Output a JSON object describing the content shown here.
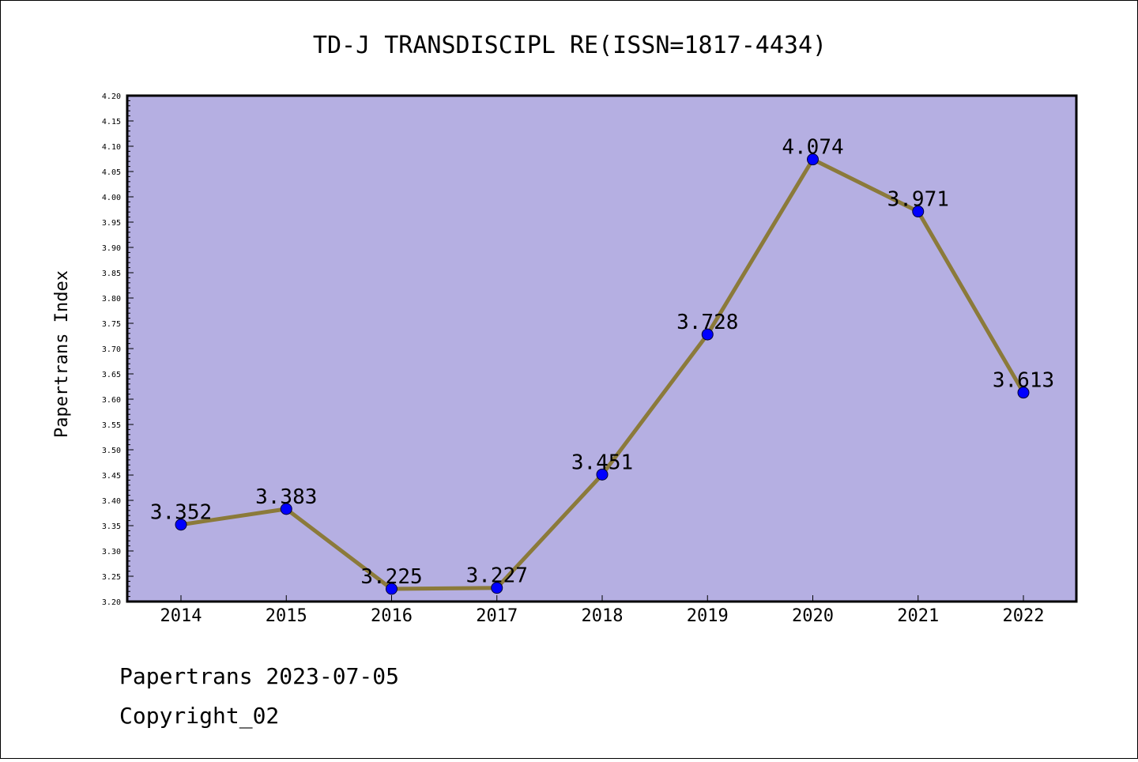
{
  "chart_data": {
    "type": "line",
    "title": "TD-J TRANSDISCIPL RE(ISSN=1817-4434)",
    "ylabel": "Papertrans Index",
    "xlabel": "",
    "categories": [
      "2014",
      "2015",
      "2016",
      "2017",
      "2018",
      "2019",
      "2020",
      "2021",
      "2022"
    ],
    "series": [
      {
        "values": [
          3.352,
          3.383,
          3.225,
          3.227,
          3.451,
          3.728,
          4.074,
          3.971,
          3.613
        ]
      }
    ],
    "data_labels": [
      "3.352",
      "3.383",
      "3.225",
      "3.227",
      "3.451",
      "3.728",
      "4.074",
      "3.971",
      "3.613"
    ],
    "ylim": [
      3.2,
      4.2
    ],
    "yticks": [
      "3.20",
      "3.25",
      "3.30",
      "3.35",
      "3.40",
      "3.45",
      "3.50",
      "3.55",
      "3.60",
      "3.65",
      "3.70",
      "3.75",
      "3.80",
      "3.85",
      "3.90",
      "3.95",
      "4.00",
      "4.05",
      "4.10",
      "4.15",
      "4.20"
    ],
    "grid": false,
    "colors": {
      "plot_background": "#b5afe2",
      "line": "#8b7a3a",
      "marker": "#0000ff"
    }
  },
  "footer": {
    "line1": "Papertrans 2023-07-05",
    "line2": "Copyright_02"
  }
}
